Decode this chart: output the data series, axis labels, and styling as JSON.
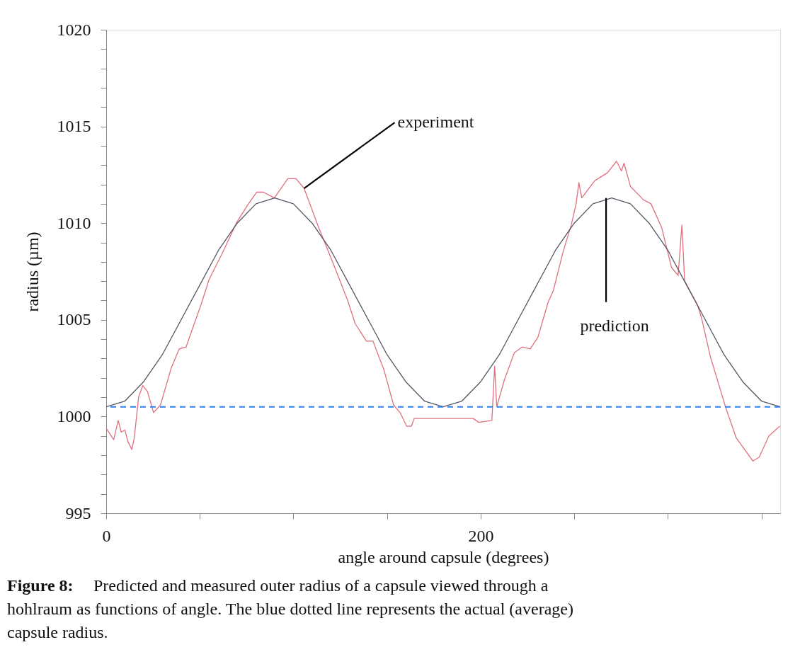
{
  "chart_data": {
    "type": "line",
    "xlabel": "angle around capsule (degrees)",
    "ylabel": "radius (µm)",
    "xlim": [
      0,
      360
    ],
    "ylim": [
      995,
      1020
    ],
    "xticks": [
      0,
      {
        "value": 50,
        "label": null
      },
      {
        "value": 100,
        "label": null
      },
      {
        "value": 150,
        "label": null
      },
      200,
      {
        "value": 250,
        "label": null
      },
      {
        "value": 300,
        "label": null
      },
      {
        "value": 350,
        "label": null
      }
    ],
    "yticks": [
      995,
      {
        "value": 996,
        "label": null
      },
      {
        "value": 997,
        "label": null
      },
      {
        "value": 998,
        "label": null
      },
      {
        "value": 999,
        "label": null
      },
      1000,
      {
        "value": 1001,
        "label": null
      },
      {
        "value": 1002,
        "label": null
      },
      {
        "value": 1003,
        "label": null
      },
      {
        "value": 1004,
        "label": null
      },
      1005,
      {
        "value": 1006,
        "label": null
      },
      {
        "value": 1007,
        "label": null
      },
      {
        "value": 1008,
        "label": null
      },
      {
        "value": 1009,
        "label": null
      },
      1010,
      {
        "value": 1011,
        "label": null
      },
      {
        "value": 1012,
        "label": null
      },
      {
        "value": 1013,
        "label": null
      },
      {
        "value": 1014,
        "label": null
      },
      1015,
      {
        "value": 1016,
        "label": null
      },
      {
        "value": 1017,
        "label": null
      },
      {
        "value": 1018,
        "label": null
      },
      {
        "value": 1019,
        "label": null
      },
      1020
    ],
    "marker": "none",
    "line_style": "solid",
    "series": [
      {
        "color": "#e0707e",
        "x": [
          0,
          4,
          6.4,
          8,
          10,
          11.6,
          13.7,
          15,
          17.3,
          19.5,
          22,
          25.3,
          29,
          34.7,
          39,
          42.7,
          46.3,
          50.7,
          55,
          62.3,
          69.5,
          75.3,
          80.4,
          84,
          89.8,
          97,
          101.4,
          105.7,
          113,
          121.7,
          129,
          133,
          139,
          142.5,
          148.4,
          153.5,
          157,
          160.5,
          163,
          164.5,
          178,
          196,
          199,
          206,
          207.5,
          208.6,
          212.7,
          218,
          222.3,
          226.5,
          230.6,
          236,
          238.8,
          244,
          248.4,
          251,
          252.5,
          254,
          261,
          267.7,
          272.6,
          275.2,
          276.6,
          280,
          287,
          291,
          296.6,
          302,
          305.5,
          307.5,
          309,
          315.7,
          318,
          322.7,
          330.8,
          336.5,
          345.4,
          348.8,
          354,
          359.8
        ],
        "values": [
          999.4,
          998.8,
          999.8,
          999.2,
          999.3,
          998.7,
          998.3,
          998.9,
          1001.0,
          1001.6,
          1001.3,
          1000.2,
          1000.6,
          1002.5,
          1003.5,
          1003.6,
          1004.6,
          1005.8,
          1007.1,
          1008.5,
          1010.0,
          1010.9,
          1011.6,
          1011.6,
          1011.3,
          1012.3,
          1012.3,
          1011.8,
          1009.9,
          1007.8,
          1006.0,
          1004.8,
          1003.9,
          1003.9,
          1002.4,
          1000.6,
          1000.2,
          999.5,
          999.5,
          999.9,
          999.9,
          999.9,
          999.7,
          999.8,
          1002.6,
          1000.5,
          1001.9,
          1003.3,
          1003.6,
          1003.5,
          1004.1,
          1005.9,
          1006.5,
          1008.5,
          1009.9,
          1011.0,
          1012.1,
          1011.3,
          1012.2,
          1012.6,
          1013.2,
          1012.7,
          1013.1,
          1011.9,
          1011.2,
          1011.0,
          1009.8,
          1007.7,
          1007.3,
          1009.9,
          1007.0,
          1005.8,
          1005.1,
          1003.1,
          1000.5,
          998.9,
          997.7,
          997.9,
          999.0,
          999.5
        ]
      },
      {
        "color": "#555566",
        "x": [
          0,
          10,
          20,
          30,
          40,
          50,
          60,
          70,
          80,
          90,
          100,
          110,
          120,
          130,
          140,
          150,
          160,
          170,
          180,
          190,
          200,
          210,
          220,
          230,
          240,
          250,
          260,
          270,
          280,
          290,
          300,
          310,
          320,
          330,
          340,
          350,
          360
        ],
        "values": [
          1000.5,
          1000.8,
          1001.8,
          1003.2,
          1005.0,
          1006.8,
          1008.6,
          1010.0,
          1011.0,
          1011.3,
          1011.0,
          1010.0,
          1008.6,
          1006.8,
          1005.0,
          1003.2,
          1001.8,
          1000.8,
          1000.5,
          1000.8,
          1001.8,
          1003.2,
          1005.0,
          1006.8,
          1008.6,
          1010.0,
          1011.0,
          1011.3,
          1011.0,
          1010.0,
          1008.6,
          1006.8,
          1005.0,
          1003.2,
          1001.8,
          1000.8,
          1000.5
        ]
      }
    ],
    "ref_lines": [
      {
        "axis": "y",
        "value": 1000.5,
        "color": "#2f80ed",
        "line_style": "dashed"
      }
    ],
    "annotations": [
      {
        "text": "experiment",
        "x": 105.7,
        "y": 1011.8
      },
      {
        "text": "prediction",
        "x": 267,
        "y": 1011.3
      },
      "Figure 8:",
      "Predicted and measured outer radius of a capsule viewed through a hohlraum as functions of angle. The blue dotted line represents the actual (average) capsule radius."
    ]
  }
}
